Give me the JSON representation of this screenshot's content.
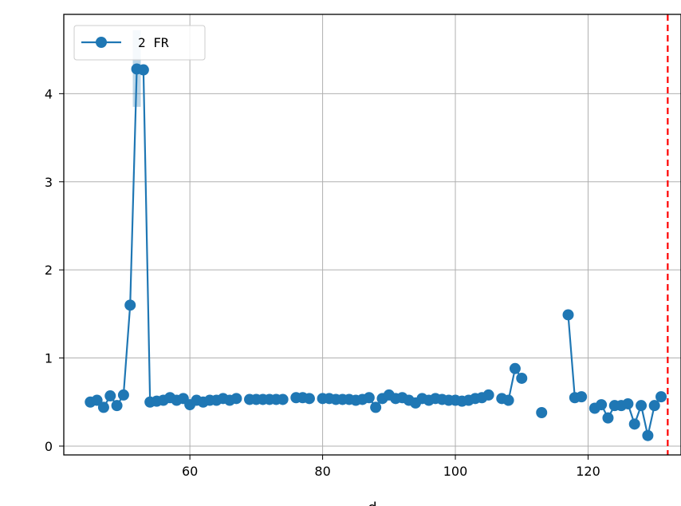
{
  "chart_data": {
    "type": "line",
    "title": "",
    "xlabel": "d",
    "ylabel": "",
    "xlim": [
      41,
      134
    ],
    "ylim": [
      -0.1,
      4.9
    ],
    "xticks": [
      60,
      80,
      100,
      120
    ],
    "yticks": [
      0,
      1,
      2,
      3,
      4
    ],
    "grid": true,
    "legend": {
      "position": "top-left"
    },
    "colors": {
      "series": "#1f77b4",
      "reference_line": "#ff0000"
    },
    "reference_line": {
      "x": 132,
      "style": "dashed"
    },
    "series": [
      {
        "name": "2 FR",
        "marker": "circle",
        "points": [
          [
            45,
            0.5
          ],
          [
            46,
            0.52
          ],
          [
            47,
            0.44
          ],
          [
            48,
            0.57
          ],
          [
            49,
            0.46
          ],
          [
            50,
            0.58
          ],
          [
            51,
            1.6
          ],
          [
            52,
            4.28
          ],
          [
            53,
            4.27
          ],
          [
            54,
            0.5
          ],
          [
            55,
            0.51
          ],
          [
            56,
            0.52
          ],
          [
            57,
            0.55
          ],
          [
            58,
            0.52
          ],
          [
            59,
            0.54
          ],
          [
            60,
            0.47
          ],
          [
            61,
            0.52
          ],
          [
            62,
            0.5
          ],
          [
            63,
            0.52
          ],
          [
            64,
            0.52
          ],
          [
            65,
            0.54
          ],
          [
            66,
            0.52
          ],
          [
            67,
            0.54
          ],
          [
            69,
            0.53
          ],
          [
            70,
            0.53
          ],
          [
            71,
            0.53
          ],
          [
            72,
            0.53
          ],
          [
            73,
            0.53
          ],
          [
            74,
            0.53
          ],
          [
            76,
            0.55
          ],
          [
            77,
            0.55
          ],
          [
            78,
            0.54
          ],
          [
            80,
            0.54
          ],
          [
            81,
            0.54
          ],
          [
            82,
            0.53
          ],
          [
            83,
            0.53
          ],
          [
            84,
            0.53
          ],
          [
            85,
            0.52
          ],
          [
            86,
            0.53
          ],
          [
            87,
            0.55
          ],
          [
            88,
            0.44
          ],
          [
            89,
            0.54
          ],
          [
            90,
            0.58
          ],
          [
            91,
            0.54
          ],
          [
            92,
            0.55
          ],
          [
            93,
            0.52
          ],
          [
            94,
            0.49
          ],
          [
            95,
            0.54
          ],
          [
            96,
            0.52
          ],
          [
            97,
            0.54
          ],
          [
            98,
            0.53
          ],
          [
            99,
            0.52
          ],
          [
            100,
            0.52
          ],
          [
            101,
            0.51
          ],
          [
            102,
            0.52
          ],
          [
            103,
            0.54
          ],
          [
            104,
            0.55
          ],
          [
            105,
            0.58
          ],
          [
            107,
            0.54
          ],
          [
            108,
            0.52
          ],
          [
            109,
            0.88
          ],
          [
            110,
            0.77
          ],
          [
            113,
            0.38
          ],
          [
            117,
            1.49
          ],
          [
            118,
            0.55
          ],
          [
            119,
            0.56
          ],
          [
            121,
            0.43
          ],
          [
            122,
            0.47
          ],
          [
            123,
            0.32
          ],
          [
            124,
            0.46
          ],
          [
            125,
            0.46
          ],
          [
            126,
            0.48
          ],
          [
            127,
            0.25
          ],
          [
            128,
            0.46
          ],
          [
            129,
            0.12
          ],
          [
            130,
            0.46
          ],
          [
            131,
            0.56
          ]
        ],
        "error_bars": [
          {
            "x": 52,
            "low": 3.85,
            "high": 4.72
          }
        ]
      }
    ]
  }
}
